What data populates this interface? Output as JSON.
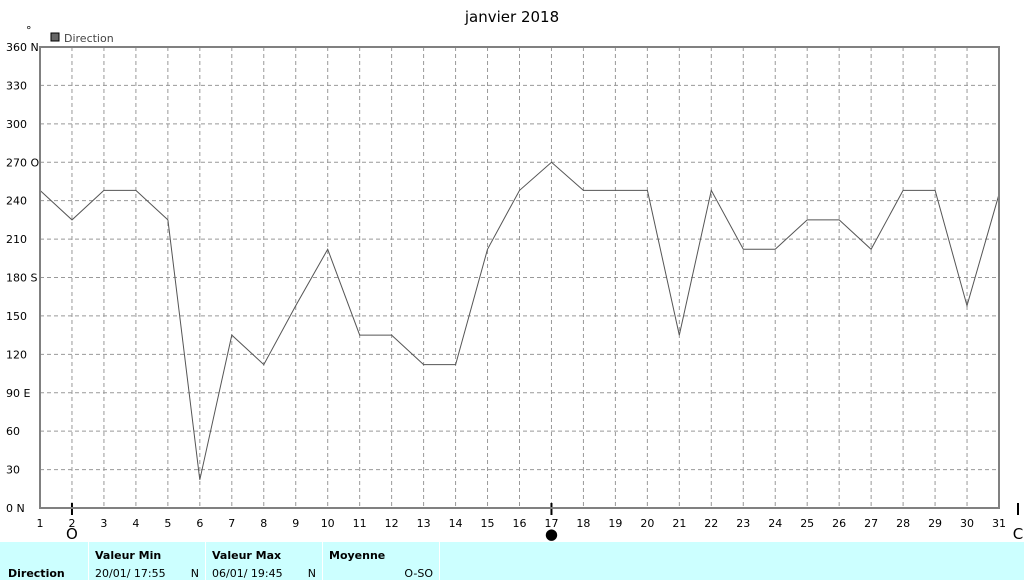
{
  "chart_data": {
    "type": "line",
    "title": "janvier 2018",
    "y_unit": "°",
    "legend": [
      {
        "name": "Direction",
        "color": "#555555"
      }
    ],
    "legend_placement": "top-left",
    "grid": true,
    "ylim": [
      0,
      360
    ],
    "xlim": [
      1,
      31
    ],
    "yticks": [
      {
        "value": 360,
        "label": "360 N"
      },
      {
        "value": 330,
        "label": "330"
      },
      {
        "value": 300,
        "label": "300"
      },
      {
        "value": 270,
        "label": "270 O"
      },
      {
        "value": 240,
        "label": "240"
      },
      {
        "value": 210,
        "label": "210"
      },
      {
        "value": 180,
        "label": "180 S"
      },
      {
        "value": 150,
        "label": "150"
      },
      {
        "value": 120,
        "label": "120"
      },
      {
        "value": 90,
        "label": "90  E"
      },
      {
        "value": 60,
        "label": "60"
      },
      {
        "value": 30,
        "label": "30"
      },
      {
        "value": 0,
        "label": "0   N"
      }
    ],
    "xticks": [
      "1",
      "2",
      "3",
      "4",
      "5",
      "6",
      "7",
      "8",
      "9",
      "10",
      "11",
      "12",
      "13",
      "14",
      "15",
      "16",
      "17",
      "18",
      "19",
      "20",
      "21",
      "22",
      "23",
      "24",
      "25",
      "26",
      "27",
      "28",
      "29",
      "30",
      "31"
    ],
    "series": [
      {
        "name": "Direction",
        "color": "#555555",
        "x": [
          1,
          2,
          3,
          4,
          5,
          6,
          7,
          8,
          9,
          10,
          11,
          12,
          13,
          14,
          15,
          16,
          17,
          18,
          19,
          20,
          21,
          22,
          23,
          24,
          25,
          26,
          27,
          28,
          29,
          30,
          31
        ],
        "y": [
          248,
          225,
          248,
          248,
          225,
          22,
          135,
          112,
          158,
          202,
          135,
          135,
          112,
          112,
          202,
          248,
          270,
          248,
          248,
          248,
          135,
          248,
          202,
          202,
          225,
          225,
          202,
          248,
          248,
          158,
          245
        ]
      }
    ],
    "moon_phases": [
      {
        "day": 2,
        "symbol": "O"
      },
      {
        "day": 17,
        "symbol": "●"
      },
      {
        "day": 31.6,
        "symbol": "C"
      }
    ]
  },
  "stats": {
    "row_label": "Direction",
    "min": {
      "header": "Valeur Min",
      "value": "20/01/  17:55",
      "unit": "N"
    },
    "max": {
      "header": "Valeur Max",
      "value": "06/01/  19:45",
      "unit": "N"
    },
    "avg": {
      "header": "Moyenne",
      "value": "O-SO"
    }
  },
  "colors": {
    "grid": "#999999",
    "frame": "#808080",
    "stats_background": "#ccffff"
  }
}
